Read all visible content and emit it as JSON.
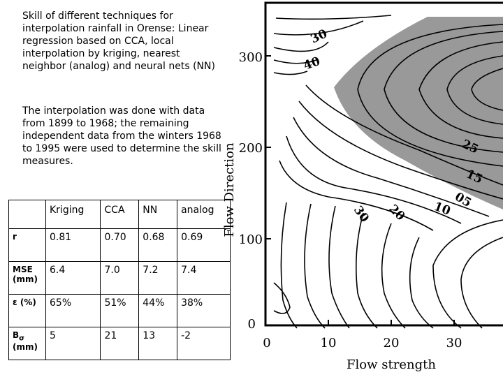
{
  "description": {
    "paragraph1": "Skill of different techniques for interpolation rainfall in Orense: Linear regression based on CCA, local interpolation by kriging, nearest neighbor (analog) and neural nets (NN)",
    "paragraph2": "The interpolation was done with data from 1899 to 1968; the remaining independent data from the winters 1968 to 1995 were used to determine the skill measures."
  },
  "skill_table": {
    "columns": [
      "",
      "Kriging",
      "CCA",
      "NN",
      "analog"
    ],
    "rows": [
      {
        "label": "r",
        "values": [
          "0.81",
          "0.70",
          "0.68",
          "0.69"
        ]
      },
      {
        "label": "MSE (mm)",
        "values": [
          "6.4",
          "7.0",
          "7.2",
          "7.4"
        ]
      },
      {
        "label": "ε (%)",
        "values": [
          "65%",
          "51%",
          "44%",
          "38%"
        ]
      },
      {
        "label_main": "B",
        "label_sub": "σ",
        "label_unit": "(mm)",
        "values": [
          "5",
          "21",
          "13",
          "-2"
        ]
      }
    ]
  },
  "chart_data": {
    "type": "contour",
    "xlabel": "Flow strength",
    "ylabel": "Flow Direction",
    "x_ticks": [
      "0",
      "10",
      "20",
      "30"
    ],
    "y_ticks": [
      "0",
      "100",
      "200",
      "300"
    ],
    "contour_labels": [
      "30",
      "40",
      "25",
      "15",
      "05",
      "30",
      "20",
      "10"
    ],
    "shaded_region_color": "#999999"
  }
}
